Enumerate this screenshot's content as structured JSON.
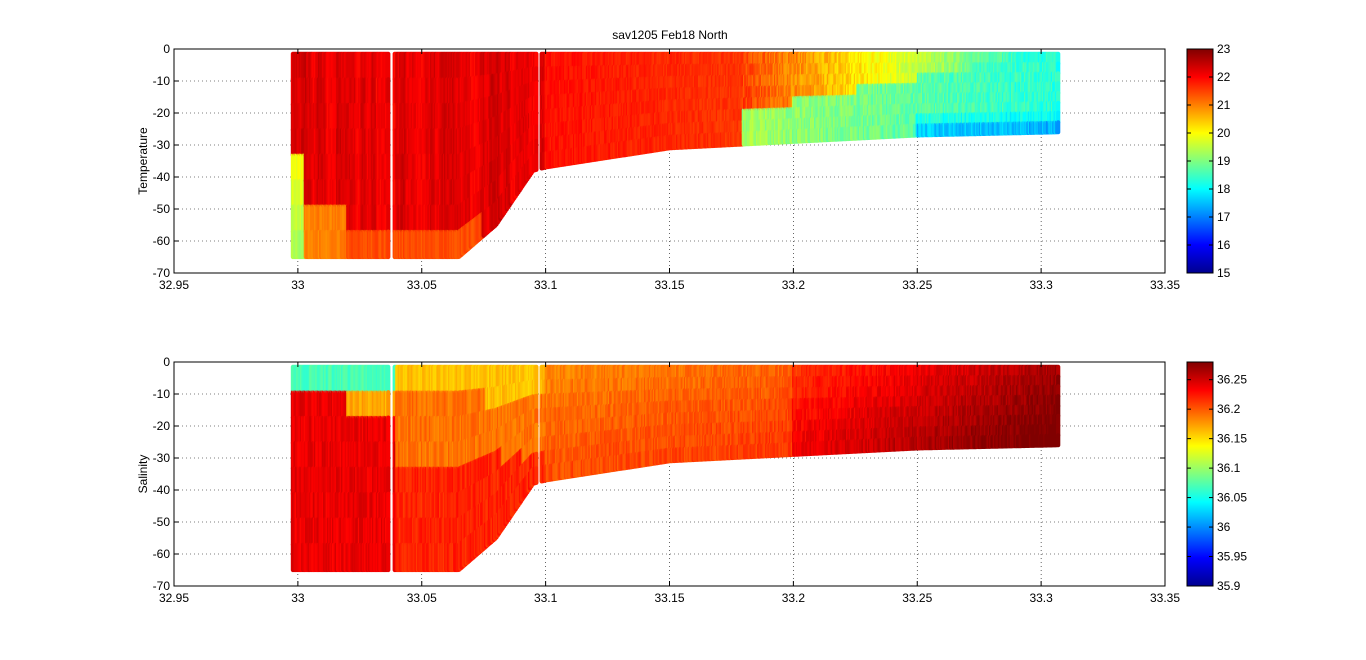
{
  "figure": {
    "title": "sav1205 Feb18 North"
  },
  "chart_data": [
    {
      "type": "scatter",
      "title": "sav1205 Feb18 North",
      "xlabel": "",
      "ylabel": "Temperature",
      "xlim": [
        32.95,
        33.35
      ],
      "ylim": [
        -70,
        0
      ],
      "xticks": [
        "32.95",
        "33",
        "33.05",
        "33.1",
        "33.15",
        "33.2",
        "33.25",
        "33.3",
        "33.35"
      ],
      "yticks": [
        "0",
        "-10",
        "-20",
        "-30",
        "-40",
        "-50",
        "-60",
        "-70"
      ],
      "grid": true,
      "colormap": "jet",
      "colorbar": {
        "range": [
          15,
          23
        ],
        "ticks": [
          "23",
          "22",
          "21",
          "20",
          "19",
          "18",
          "17",
          "16",
          "15"
        ]
      },
      "data_extent": {
        "x_start": 32.998,
        "x_end": 33.307,
        "deep_section_end": 33.098
      },
      "depth_profile": [
        {
          "x": 33.0,
          "max_depth": -65
        },
        {
          "x": 33.065,
          "max_depth": -65
        },
        {
          "x": 33.08,
          "max_depth": -55
        },
        {
          "x": 33.095,
          "max_depth": -38
        },
        {
          "x": 33.1,
          "max_depth": -37
        },
        {
          "x": 33.15,
          "max_depth": -31
        },
        {
          "x": 33.2,
          "max_depth": -29
        },
        {
          "x": 33.25,
          "max_depth": -27
        },
        {
          "x": 33.307,
          "max_depth": -26
        }
      ],
      "color_summary": [
        {
          "x_range": [
            33.0,
            33.1
          ],
          "value": 22.3,
          "note": "mostly dark red, cooler (20-21) at depth near 33.0"
        },
        {
          "x_range": [
            33.1,
            33.2
          ],
          "value": 21.8,
          "note": "red throughout"
        },
        {
          "x_range": [
            33.2,
            33.25
          ],
          "value": 19.5,
          "note": "yellow/green below ~-15"
        },
        {
          "x_range": [
            33.25,
            33.307
          ],
          "value": 18.6,
          "note": "cyan/green, bluish (17) near bottom"
        }
      ]
    },
    {
      "type": "scatter",
      "title": "",
      "xlabel": "",
      "ylabel": "Salinity",
      "xlim": [
        32.95,
        33.35
      ],
      "ylim": [
        -70,
        0
      ],
      "xticks": [
        "32.95",
        "33",
        "33.05",
        "33.1",
        "33.15",
        "33.2",
        "33.25",
        "33.3",
        "33.35"
      ],
      "yticks": [
        "0",
        "-10",
        "-20",
        "-30",
        "-40",
        "-50",
        "-60",
        "-70"
      ],
      "grid": true,
      "colormap": "jet",
      "colorbar": {
        "range": [
          35.9,
          36.28
        ],
        "ticks": [
          "36.25",
          "36.2",
          "36.15",
          "36.1",
          "36.05",
          "36",
          "35.95",
          "35.9"
        ]
      },
      "data_extent": {
        "x_start": 32.998,
        "x_end": 33.307,
        "deep_section_end": 33.098
      },
      "color_summary": [
        {
          "x_range": [
            33.0,
            33.04
          ],
          "value": 36.07,
          "note": "cyan near surface, dark red at depth"
        },
        {
          "x_range": [
            33.04,
            33.1
          ],
          "value": 36.17,
          "note": "yellow near surface, orange/red deeper"
        },
        {
          "x_range": [
            33.1,
            33.2
          ],
          "value": 36.2,
          "note": "orange/red"
        },
        {
          "x_range": [
            33.2,
            33.307
          ],
          "value": 36.25,
          "note": "dark red, darkest toward east"
        }
      ]
    }
  ]
}
